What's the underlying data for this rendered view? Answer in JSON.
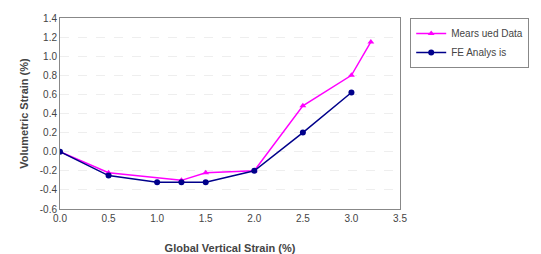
{
  "chart_data": {
    "type": "line",
    "xlabel": "Global Vertical Strain (%)",
    "ylabel": "Volumetric Strain (%)",
    "series": [
      {
        "name": "Mears ued Data",
        "color": "#FF00FF",
        "marker": "triangle-up",
        "x": [
          0,
          0.5,
          1.25,
          1.5,
          2.0,
          2.5,
          3.0,
          3.2
        ],
        "values": [
          0,
          -0.22,
          -0.3,
          -0.22,
          -0.2,
          0.48,
          0.8,
          1.15
        ]
      },
      {
        "name": "FE Analys is",
        "color": "#00008B",
        "marker": "circle",
        "x": [
          0,
          0.5,
          1.0,
          1.25,
          1.5,
          2.0,
          2.5,
          3.0
        ],
        "values": [
          0,
          -0.25,
          -0.32,
          -0.32,
          -0.32,
          -0.2,
          0.2,
          0.62
        ]
      }
    ],
    "xlim": [
      0,
      3.5
    ],
    "ylim": [
      -0.6,
      1.4
    ],
    "xticks": [
      {
        "value": 0,
        "label": "0.0"
      },
      0.5,
      {
        "value": 1,
        "label": "1.0"
      },
      1.5,
      {
        "value": 2,
        "label": "2.0"
      },
      2.5,
      {
        "value": 3,
        "label": "3.0"
      },
      3.5
    ],
    "yticks": [
      -0.6,
      -0.4,
      -0.2,
      {
        "value": 0,
        "label": "0.0"
      },
      0.2,
      0.4,
      0.6,
      0.8,
      {
        "value": 1.0,
        "label": "1.0"
      },
      1.2,
      1.4
    ],
    "grid": "y",
    "legend": "right"
  }
}
